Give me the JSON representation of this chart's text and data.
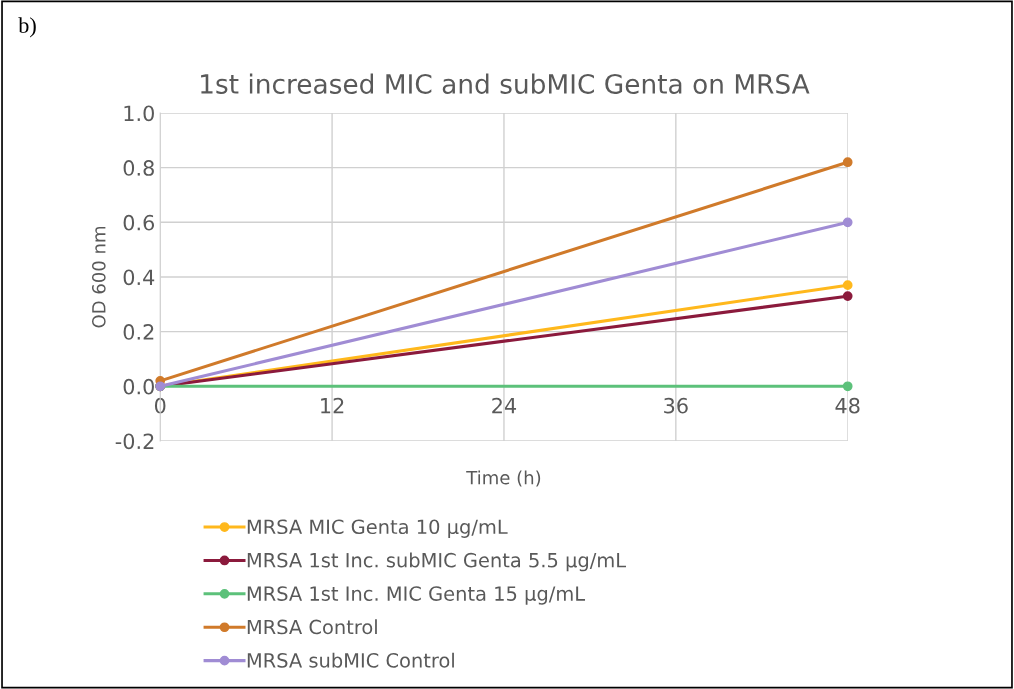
{
  "chart_data": {
    "type": "line",
    "title": "1st increased MIC and subMIC Genta on MRSA",
    "xlabel": "Time (h)",
    "ylabel": "OD 600 nm",
    "annotations": [
      "b)"
    ],
    "x": [
      0,
      48
    ],
    "xlim": [
      0,
      48
    ],
    "xticks": [
      0,
      12,
      24,
      36,
      48
    ],
    "ylim": [
      -0.2,
      1.0
    ],
    "yticks": [
      {
        "value": -0.2,
        "label": "-0.2"
      },
      {
        "value": 0.0,
        "label": "0.0"
      },
      {
        "value": 0.2,
        "label": "0.2"
      },
      {
        "value": 0.4,
        "label": "0.4"
      },
      {
        "value": 0.6,
        "label": "0.6"
      },
      {
        "value": 0.8,
        "label": "0.8"
      },
      {
        "value": 1.0,
        "label": "1.0"
      }
    ],
    "grid": true,
    "legend": "bottom",
    "marker": "circle",
    "line_style": "solid",
    "series": [
      {
        "name": "MRSA MIC Genta 10 µg/mL",
        "color": "#ffb81c",
        "values": [
          0.0,
          0.37
        ]
      },
      {
        "name": "MRSA 1st Inc. subMIC Genta 5.5 µg/mL",
        "color": "#8b1a3c",
        "values": [
          0.0,
          0.33
        ]
      },
      {
        "name": "MRSA 1st Inc. MIC Genta 15 µg/mL",
        "color": "#5cc17a",
        "values": [
          0.0,
          0.0
        ]
      },
      {
        "name": "MRSA Control",
        "color": "#d07a2a",
        "values": [
          0.02,
          0.82
        ]
      },
      {
        "name": "MRSA subMIC Control",
        "color": "#a08cd4",
        "values": [
          0.0,
          0.6
        ]
      }
    ]
  }
}
